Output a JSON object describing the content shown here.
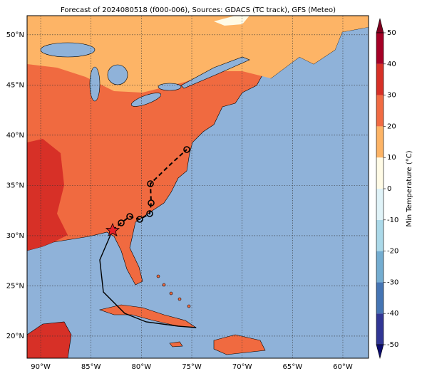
{
  "map": {
    "title": "Forecast of 2024080518 (f000-006), Sources: GDACS (TC track), GFS (Meteo)",
    "xlim": [
      -91.35,
      -57.45
    ],
    "ylim": [
      17.8,
      51.9
    ],
    "xticks": [
      {
        "value": -90,
        "label": "90°W"
      },
      {
        "value": -85,
        "label": "85°W"
      },
      {
        "value": -80,
        "label": "80°W"
      },
      {
        "value": -75,
        "label": "75°W"
      },
      {
        "value": -70,
        "label": "70°W"
      },
      {
        "value": -65,
        "label": "65°W"
      },
      {
        "value": -60,
        "label": "60°W"
      }
    ],
    "yticks": [
      {
        "value": 20,
        "label": "20°N"
      },
      {
        "value": 25,
        "label": "25°N"
      },
      {
        "value": 30,
        "label": "30°N"
      },
      {
        "value": 35,
        "label": "35°N"
      },
      {
        "value": 40,
        "label": "40°N"
      },
      {
        "value": 45,
        "label": "45°N"
      },
      {
        "value": 50,
        "label": "50°N"
      }
    ],
    "grid": true,
    "colorbar": {
      "label": "Min Temperature (°C)",
      "lim": [
        -50,
        50
      ],
      "ticks": [
        -50,
        -40,
        -30,
        -20,
        -10,
        0,
        10,
        20,
        30,
        40,
        50
      ],
      "colors": [
        "#313695",
        "#4575b4",
        "#74add1",
        "#abd9e9",
        "#e0f3f8",
        "#fffbe6",
        "#fdb466",
        "#f16b43",
        "#d73027",
        "#a50026"
      ],
      "extend_colors": [
        "#0c0c70",
        "#800020"
      ]
    }
  }
}
